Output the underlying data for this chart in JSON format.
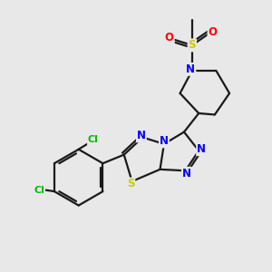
{
  "bg_color": "#e8e8e8",
  "bond_color": "#1a1a1a",
  "bond_lw": 1.6,
  "atom_colors": {
    "N": "#0000ff",
    "S": "#cccc00",
    "O": "#ff0000",
    "Cl": "#00bb00",
    "C": "#1a1a1a"
  },
  "font_size_atom": 8.5
}
